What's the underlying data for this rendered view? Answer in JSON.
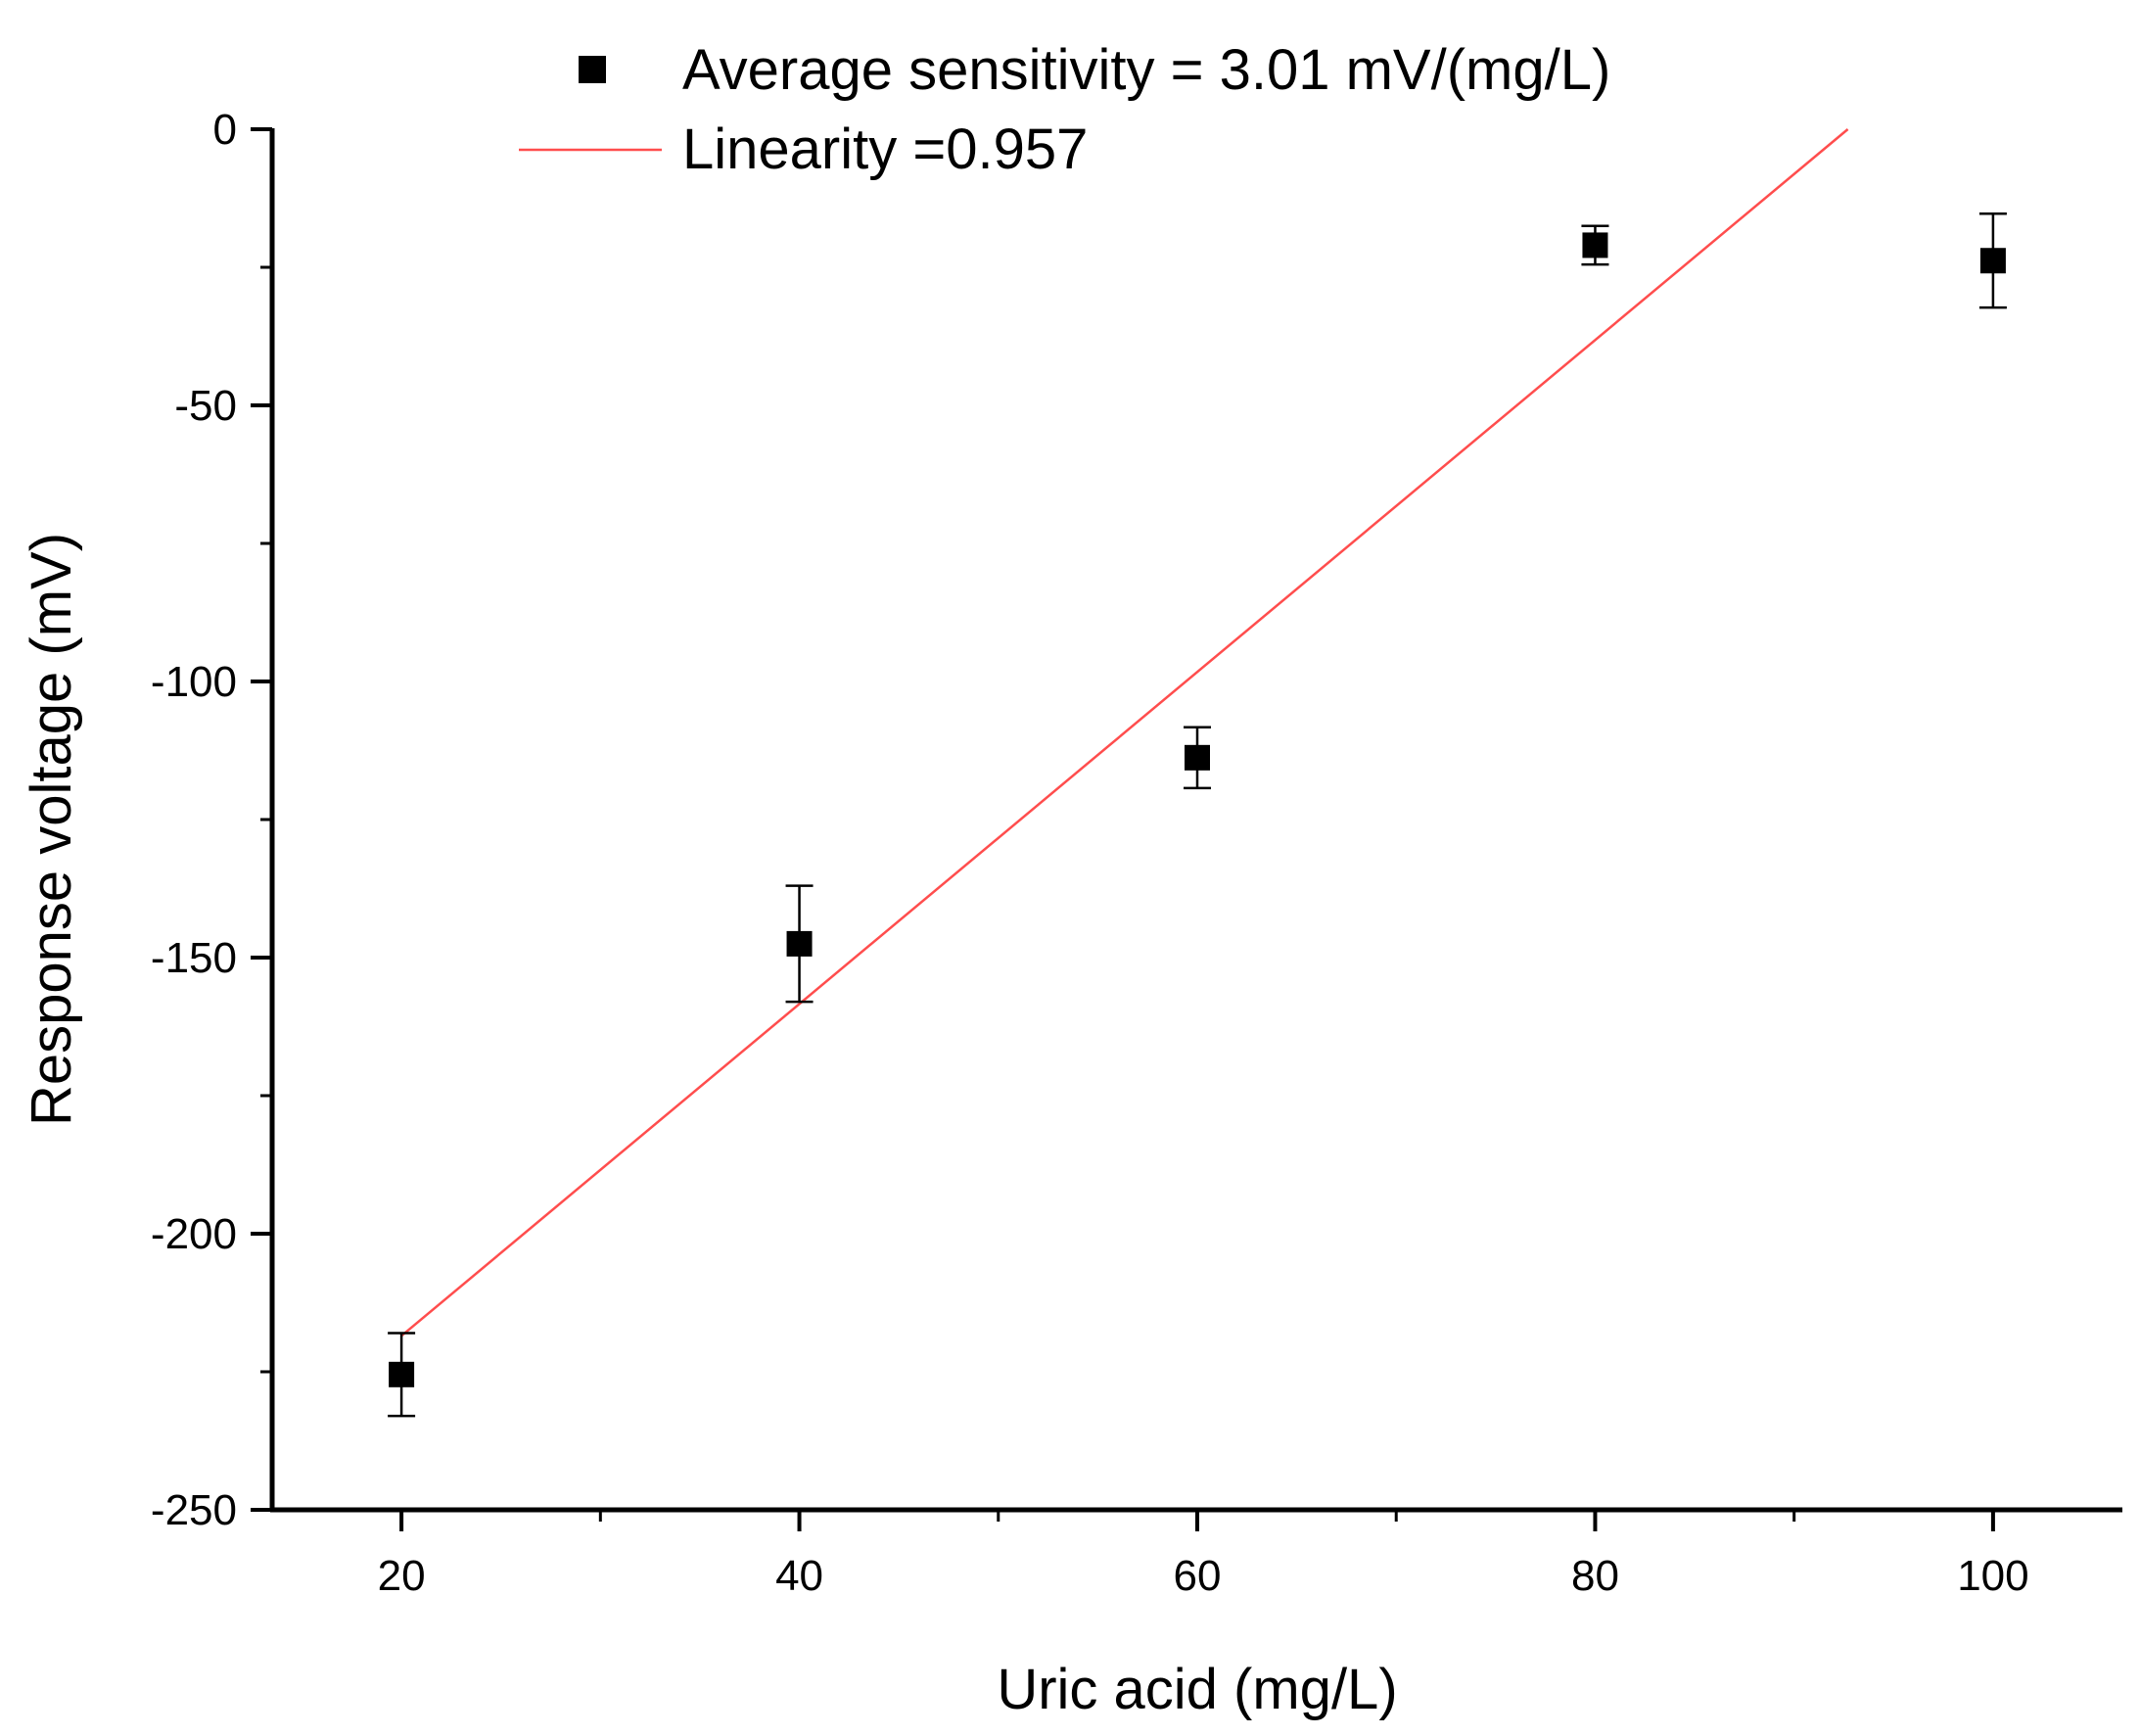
{
  "chart_data": {
    "type": "scatter",
    "title": "",
    "xlabel": "Uric acid (mg/L)",
    "ylabel": "Response voltage (mV)",
    "xlim": [
      13.5,
      106.5
    ],
    "ylim": [
      -250,
      0
    ],
    "xticks": [
      20,
      40,
      60,
      80,
      100
    ],
    "xticks_minor": [
      30,
      50,
      70,
      90
    ],
    "yticks": [
      0,
      -50,
      -100,
      -150,
      -200,
      -250
    ],
    "yticks_minor": [
      -25,
      -75,
      -125,
      -175,
      -225
    ],
    "grid": false,
    "legend_position": "top",
    "series": [
      {
        "name": "Average sensitivity = 3.01 mV/(mg/L)",
        "kind": "scatter",
        "marker": "square",
        "color": "#000000",
        "x": [
          20,
          40,
          60,
          80,
          100
        ],
        "y": [
          -225.5,
          -147.5,
          -113.8,
          -21,
          -23.8
        ],
        "error": [
          7.5,
          10.5,
          5.5,
          3.5,
          8.5
        ]
      },
      {
        "name": "Linearity =0.957",
        "kind": "line",
        "color": "#ff4d4d",
        "x": [
          20,
          92.7
        ],
        "y": [
          -218.5,
          0
        ]
      }
    ]
  }
}
